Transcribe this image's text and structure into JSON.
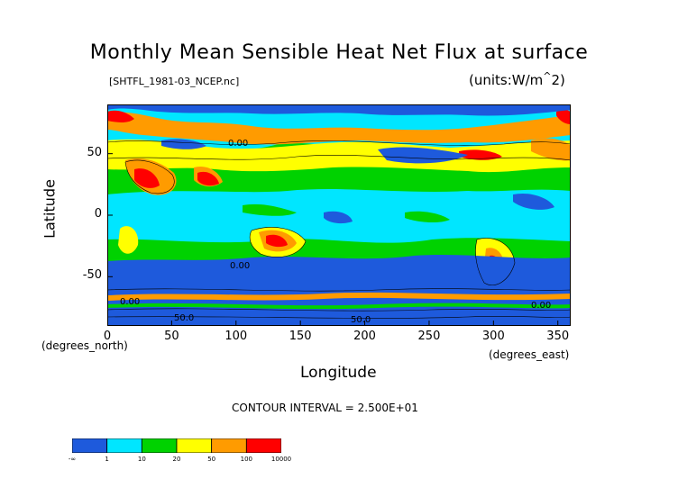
{
  "title": "Monthly Mean Sensible Heat Net Flux at surface",
  "dataset": "[SHTFL_1981-03_NCEP.nc]",
  "units": "(units:W/m^2)",
  "xlabel": "Longitude",
  "ylabel": "Latitude",
  "x_unit_label": "(degrees_east)",
  "y_unit_label": "(degrees_north)",
  "contour_interval": "CONTOUR INTERVAL = 2.500E+01",
  "map": {
    "lon_range": [
      0,
      360
    ],
    "lat_range": [
      -90,
      90
    ],
    "x_ticks": [
      "0",
      "50",
      "100",
      "150",
      "200",
      "250",
      "300",
      "350"
    ],
    "x_tick_values": [
      0,
      50,
      100,
      150,
      200,
      250,
      300,
      350
    ],
    "y_ticks": [
      "50",
      "0",
      "-50"
    ],
    "y_tick_values": [
      50,
      0,
      -50
    ],
    "contour_labels": [
      "0.00",
      "50.0",
      "0.00",
      "50.0",
      "0.00",
      "0.00"
    ]
  },
  "colorbar": {
    "colors": [
      "#1e5adc",
      "#00e6ff",
      "#00d200",
      "#ffff00",
      "#ff9b00",
      "#ff0000"
    ],
    "labels": [
      "-∞",
      "1",
      "10",
      "20",
      "50",
      "100",
      "10000"
    ]
  }
}
